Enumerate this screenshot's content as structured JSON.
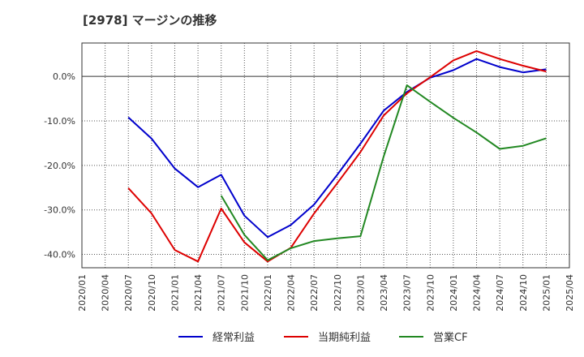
{
  "chart_data": {
    "type": "line",
    "title": "[2978]  マージンの推移",
    "x": [
      "2020/01",
      "2020/04",
      "2020/07",
      "2020/10",
      "2021/01",
      "2021/04",
      "2021/07",
      "2021/10",
      "2022/01",
      "2022/04",
      "2022/07",
      "2022/10",
      "2023/01",
      "2023/04",
      "2023/07",
      "2023/10",
      "2024/01",
      "2024/04",
      "2024/07",
      "2024/10",
      "2025/01",
      "2025/04"
    ],
    "ylim": [
      -43,
      7.5
    ],
    "yticks": [
      0,
      -10,
      -20,
      -30,
      -40
    ],
    "ytick_labels": [
      "0.0%",
      "-10.0%",
      "-20.0%",
      "-30.0%",
      "-40.0%"
    ],
    "grid": true,
    "legend_position": "bottom",
    "series": [
      {
        "name": "経常利益",
        "color": "#0000cc",
        "values": [
          null,
          null,
          -9.2,
          -14,
          -20.7,
          -24.9,
          -22.1,
          -31.3,
          -36.1,
          -33.4,
          -28.8,
          -22.1,
          -15.1,
          -7.7,
          -3.5,
          -0.3,
          1.4,
          3.9,
          2.1,
          0.9,
          1.6,
          null
        ]
      },
      {
        "name": "当期純利益",
        "color": "#dd0000",
        "values": [
          null,
          null,
          -25.1,
          -30.8,
          -39.0,
          -41.6,
          -29.7,
          -37.3,
          -41.6,
          -38.5,
          -30.8,
          -24.0,
          -17.0,
          -8.8,
          -3.8,
          -0.2,
          3.6,
          5.7,
          3.9,
          2.4,
          1.1,
          null
        ]
      },
      {
        "name": "営業CF",
        "color": "#228822",
        "values": [
          null,
          null,
          null,
          null,
          null,
          null,
          -26.8,
          -35.6,
          -41.3,
          -38.6,
          -37.0,
          -36.4,
          -35.9,
          -18.0,
          -2.0,
          -5.7,
          -9.3,
          -12.6,
          -16.3,
          -15.6,
          -13.9,
          null
        ]
      }
    ]
  }
}
